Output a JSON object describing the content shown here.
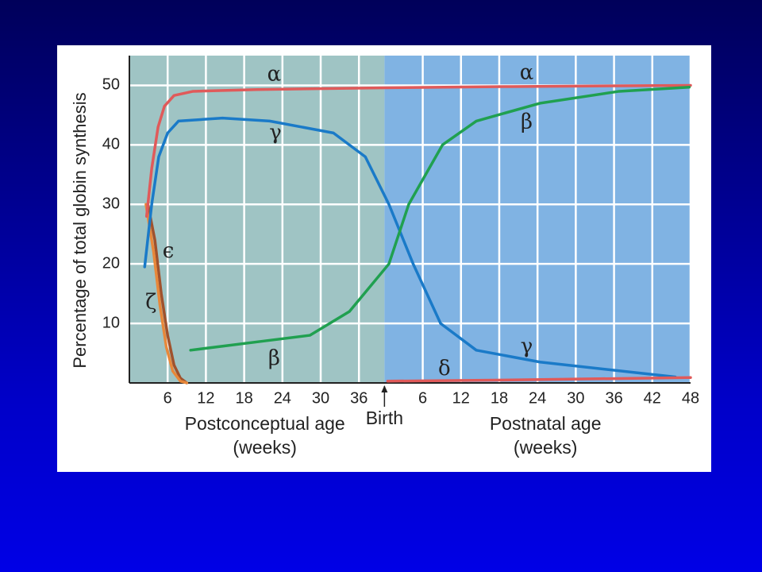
{
  "chart_data": {
    "type": "line",
    "y_label": "Percentage of total globin synthesis",
    "x_label_left": [
      "Postconceptual age",
      "(weeks)"
    ],
    "x_label_right": [
      "Postnatal age",
      "(weeks)"
    ],
    "birth_label": "Birth",
    "birth": 40,
    "xlim": [
      0,
      88
    ],
    "ylim": [
      0,
      55
    ],
    "xticks": [
      6,
      12,
      18,
      24,
      30,
      36,
      {
        "value": 46,
        "label": "6"
      },
      {
        "value": 52,
        "label": "12"
      },
      {
        "value": 58,
        "label": "18"
      },
      {
        "value": 64,
        "label": "24"
      },
      {
        "value": 70,
        "label": "30"
      },
      {
        "value": 76,
        "label": "36"
      },
      {
        "value": 82,
        "label": "42"
      },
      {
        "value": 88,
        "label": "48"
      }
    ],
    "yticks": [
      10,
      20,
      30,
      40,
      50
    ],
    "grid": true,
    "regions": [
      {
        "from": 0,
        "to": 40,
        "color": "#9fc4c4"
      },
      {
        "from": 40,
        "to": 88,
        "color": "#80b3e3"
      }
    ],
    "series": [
      {
        "color": "#a0522d",
        "x": [
          2.9,
          4,
          5,
          6,
          7,
          8,
          9
        ],
        "values": [
          30,
          24,
          15,
          8,
          3,
          0.8,
          0
        ]
      },
      {
        "color": "#e8883a",
        "x": [
          2.6,
          3.8,
          4.8,
          5.8,
          6.8,
          8,
          9
        ],
        "values": [
          30,
          22,
          13,
          6,
          2,
          0.3,
          0
        ]
      },
      {
        "color": "#e05a5a",
        "x": [
          2.7,
          3.5,
          4.5,
          5.5,
          7,
          10,
          20,
          40,
          60,
          88
        ],
        "values": [
          28,
          36,
          43,
          46.5,
          48.3,
          49,
          49.3,
          49.6,
          49.8,
          50
        ]
      },
      {
        "color": "#1a7ac8",
        "x": [
          2.4,
          3.5,
          4.6,
          6,
          7.7,
          14.6,
          22,
          32,
          37,
          40.7,
          44.5,
          48.8,
          54.4,
          64.4,
          85.6
        ],
        "values": [
          19.5,
          30,
          38,
          42,
          44,
          44.5,
          44,
          42,
          38,
          30,
          20,
          10,
          5.5,
          3.5,
          1
        ]
      },
      {
        "color": "#20a050",
        "x": [
          9.6,
          20.8,
          28.3,
          34.5,
          40.7,
          43.8,
          49.1,
          54.4,
          64.4,
          76.8,
          87.8
        ],
        "values": [
          5.5,
          7,
          8,
          12,
          20,
          30,
          40,
          44,
          47,
          49,
          49.7
        ]
      },
      {
        "color": "#e05a5a",
        "x": [
          40.5,
          60,
          88
        ],
        "values": [
          0.3,
          0.5,
          0.9
        ]
      }
    ],
    "annotations": [
      {
        "text": "α",
        "x": 22.7,
        "y": 51.7
      },
      {
        "text": "α",
        "x": 62.3,
        "y": 52
      },
      {
        "text": "γ",
        "x": 22.9,
        "y": 41.9
      },
      {
        "text": "β",
        "x": 62.3,
        "y": 43.7
      },
      {
        "text": "ϵ",
        "x": 6.1,
        "y": 22
      },
      {
        "text": "ζ",
        "x": 3.4,
        "y": 13.4
      },
      {
        "text": "β",
        "x": 22.7,
        "y": 4
      },
      {
        "text": "δ",
        "x": 49.4,
        "y": 2.3
      },
      {
        "text": "γ",
        "x": 62.3,
        "y": 6
      }
    ]
  }
}
